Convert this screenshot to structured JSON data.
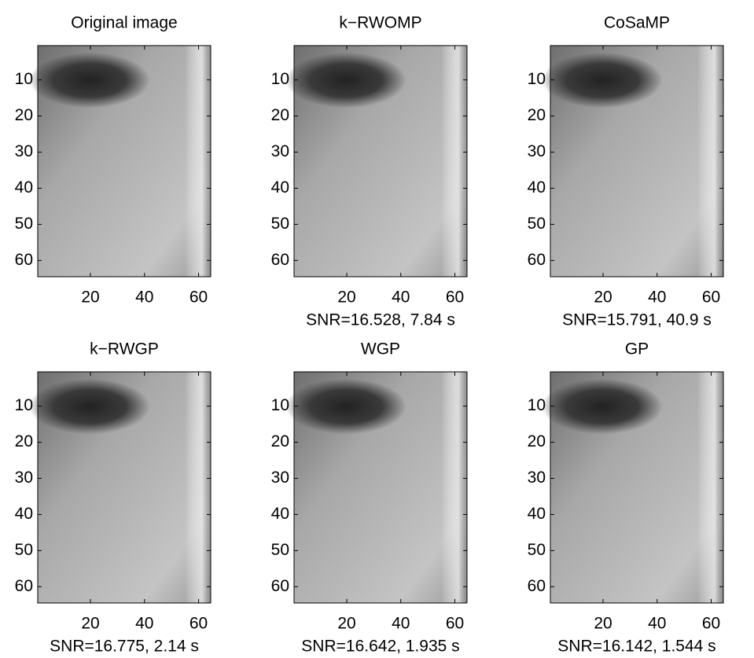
{
  "chart_data": [
    {
      "type": "image",
      "title": "Original image",
      "xlim": [
        0.5,
        64.5
      ],
      "ylim": [
        64.5,
        0.5
      ],
      "xticks": [
        20,
        40,
        60
      ],
      "yticks": [
        10,
        20,
        30,
        40,
        50,
        60
      ]
    },
    {
      "type": "image",
      "title": "k−RWOMP",
      "xlabel": "SNR=16.528, 7.84 s",
      "xlim": [
        0.5,
        64.5
      ],
      "ylim": [
        64.5,
        0.5
      ],
      "xticks": [
        20,
        40,
        60
      ],
      "yticks": [
        10,
        20,
        30,
        40,
        50,
        60
      ]
    },
    {
      "type": "image",
      "title": "CoSaMP",
      "xlabel": "SNR=15.791, 40.9 s",
      "xlim": [
        0.5,
        64.5
      ],
      "ylim": [
        64.5,
        0.5
      ],
      "xticks": [
        20,
        40,
        60
      ],
      "yticks": [
        10,
        20,
        30,
        40,
        50,
        60
      ]
    },
    {
      "type": "image",
      "title": "k−RWGP",
      "xlabel": "SNR=16.775, 2.14 s",
      "xlim": [
        0.5,
        64.5
      ],
      "ylim": [
        64.5,
        0.5
      ],
      "xticks": [
        20,
        40,
        60
      ],
      "yticks": [
        10,
        20,
        30,
        40,
        50,
        60
      ]
    },
    {
      "type": "image",
      "title": "WGP",
      "xlabel": "SNR=16.642, 1.935 s",
      "xlim": [
        0.5,
        64.5
      ],
      "ylim": [
        64.5,
        0.5
      ],
      "xticks": [
        20,
        40,
        60
      ],
      "yticks": [
        10,
        20,
        30,
        40,
        50,
        60
      ]
    },
    {
      "type": "image",
      "title": "GP",
      "xlabel": "SNR=16.142, 1.544 s",
      "xlim": [
        0.5,
        64.5
      ],
      "ylim": [
        64.5,
        0.5
      ],
      "xticks": [
        20,
        40,
        60
      ],
      "yticks": [
        10,
        20,
        30,
        40,
        50,
        60
      ]
    }
  ]
}
